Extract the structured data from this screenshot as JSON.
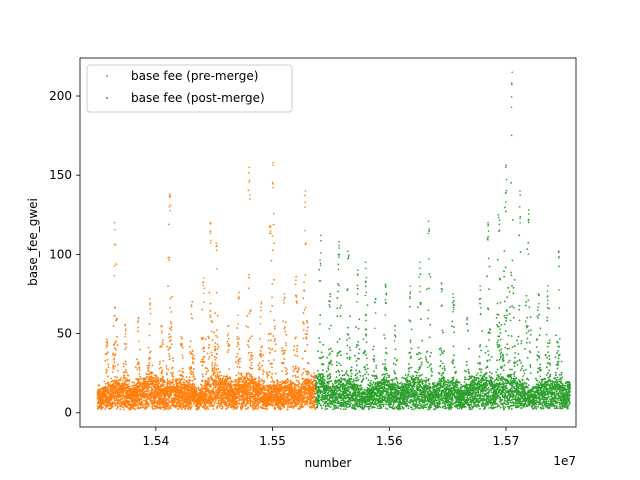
{
  "chart_data": {
    "type": "scatter",
    "title": "",
    "xlabel": "number",
    "ylabel": "base_fee_gwei",
    "x_offset_label": "1e7",
    "xlim": [
      15335000,
      15760000
    ],
    "ylim": [
      -9,
      224
    ],
    "xticks": [
      15400000,
      15500000,
      15600000,
      15700000
    ],
    "xtick_labels": [
      "1.54",
      "1.55",
      "1.56",
      "1.57"
    ],
    "yticks": [
      0,
      50,
      100,
      150,
      200
    ],
    "ytick_labels": [
      "0",
      "50",
      "100",
      "150",
      "200"
    ],
    "grid": false,
    "legend_placement": "upper-left",
    "series": [
      {
        "name": "base fee (pre-merge)",
        "color": "#ff7f0e",
        "x_range": [
          15350000,
          15537000
        ],
        "peaks": [
          {
            "x": 15358000,
            "y": 45
          },
          {
            "x": 15365000,
            "y": 120
          },
          {
            "x": 15374000,
            "y": 55
          },
          {
            "x": 15385000,
            "y": 60
          },
          {
            "x": 15395000,
            "y": 72
          },
          {
            "x": 15405000,
            "y": 55
          },
          {
            "x": 15412000,
            "y": 138
          },
          {
            "x": 15422000,
            "y": 48
          },
          {
            "x": 15431000,
            "y": 70
          },
          {
            "x": 15441000,
            "y": 85
          },
          {
            "x": 15447000,
            "y": 120
          },
          {
            "x": 15452000,
            "y": 107
          },
          {
            "x": 15462000,
            "y": 55
          },
          {
            "x": 15471000,
            "y": 76
          },
          {
            "x": 15480000,
            "y": 155
          },
          {
            "x": 15490000,
            "y": 70
          },
          {
            "x": 15498000,
            "y": 118
          },
          {
            "x": 15500000,
            "y": 158
          },
          {
            "x": 15510000,
            "y": 75
          },
          {
            "x": 15520000,
            "y": 86
          },
          {
            "x": 15528000,
            "y": 140
          }
        ]
      },
      {
        "name": "base fee (post-merge)",
        "color": "#2ca02c",
        "x_range": [
          15537000,
          15755000
        ],
        "peaks": [
          {
            "x": 15541000,
            "y": 112
          },
          {
            "x": 15549000,
            "y": 75
          },
          {
            "x": 15557000,
            "y": 108
          },
          {
            "x": 15565000,
            "y": 102
          },
          {
            "x": 15573000,
            "y": 90
          },
          {
            "x": 15580000,
            "y": 95
          },
          {
            "x": 15588000,
            "y": 72
          },
          {
            "x": 15597000,
            "y": 80
          },
          {
            "x": 15605000,
            "y": 55
          },
          {
            "x": 15618000,
            "y": 80
          },
          {
            "x": 15626000,
            "y": 95
          },
          {
            "x": 15634000,
            "y": 121
          },
          {
            "x": 15645000,
            "y": 82
          },
          {
            "x": 15655000,
            "y": 75
          },
          {
            "x": 15667000,
            "y": 60
          },
          {
            "x": 15678000,
            "y": 80
          },
          {
            "x": 15685000,
            "y": 120
          },
          {
            "x": 15694000,
            "y": 125
          },
          {
            "x": 15700000,
            "y": 155
          },
          {
            "x": 15705000,
            "y": 215
          },
          {
            "x": 15712000,
            "y": 140
          },
          {
            "x": 15719000,
            "y": 128
          },
          {
            "x": 15728000,
            "y": 75
          },
          {
            "x": 15736000,
            "y": 80
          },
          {
            "x": 15745000,
            "y": 102
          }
        ]
      }
    ]
  }
}
